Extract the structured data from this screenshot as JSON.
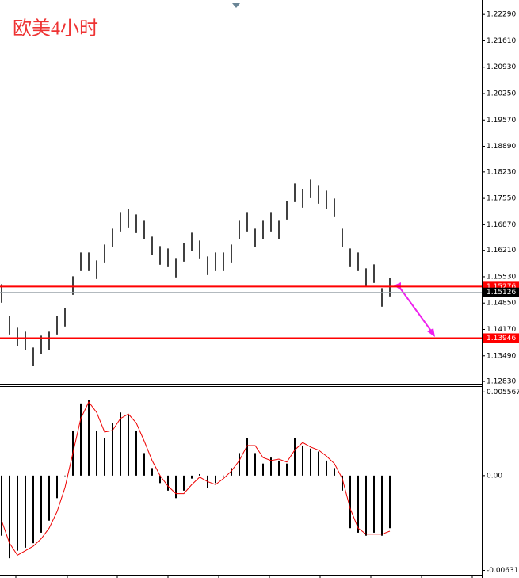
{
  "chart_data": [
    {
      "type": "range_bar",
      "title": "欧美4小时",
      "title_color": "#ee3333",
      "color": "#000000",
      "high": [
        1.15338,
        1.1452,
        1.14214,
        1.14112,
        1.13703,
        1.1401,
        1.14112,
        1.1452,
        1.14725,
        1.15542,
        1.16155,
        1.16155,
        1.15951,
        1.16359,
        1.16768,
        1.17177,
        1.17279,
        1.17136,
        1.16972,
        1.16564,
        1.16319,
        1.16257,
        1.15992,
        1.164,
        1.16666,
        1.16462,
        1.16053,
        1.16155,
        1.16155,
        1.16359,
        1.16972,
        1.17177,
        1.16768,
        1.16972,
        1.17177,
        1.16972,
        1.17483,
        1.17933,
        1.1779,
        1.18035,
        1.17892,
        1.17749,
        1.17545,
        1.16768,
        1.16257,
        1.16155,
        1.15747,
        1.15849,
        1.15236,
        1.15501
      ],
      "low": [
        1.14858,
        1.1404,
        1.13734,
        1.13632,
        1.13223,
        1.1353,
        1.13632,
        1.1404,
        1.14245,
        1.15062,
        1.15675,
        1.15675,
        1.15471,
        1.15879,
        1.16288,
        1.16697,
        1.16799,
        1.16656,
        1.16492,
        1.16084,
        1.15839,
        1.15777,
        1.15512,
        1.1592,
        1.16186,
        1.15982,
        1.15573,
        1.15675,
        1.15675,
        1.15879,
        1.16492,
        1.16697,
        1.16288,
        1.16492,
        1.16697,
        1.16492,
        1.17003,
        1.17453,
        1.1731,
        1.17555,
        1.17412,
        1.17269,
        1.17065,
        1.16288,
        1.15777,
        1.15675,
        1.15267,
        1.15369,
        1.14756,
        1.15021
      ],
      "ylim": [
        1.1277,
        1.2258
      ],
      "yticks": [
        {
          "value": 1.2229,
          "label": "1.22290"
        },
        {
          "value": 1.2161,
          "label": "1.21610"
        },
        {
          "value": 1.2093,
          "label": "1.20930"
        },
        {
          "value": 1.2025,
          "label": "1.20250"
        },
        {
          "value": 1.1957,
          "label": "1.19570"
        },
        {
          "value": 1.1889,
          "label": "1.18890"
        },
        {
          "value": 1.1823,
          "label": "1.18230"
        },
        {
          "value": 1.1755,
          "label": "1.17550"
        },
        {
          "value": 1.1687,
          "label": "1.16870"
        },
        {
          "value": 1.1621,
          "label": "1.16210"
        },
        {
          "value": 1.1553,
          "label": "1.15530"
        },
        {
          "value": 1.1485,
          "label": "1.14850"
        },
        {
          "value": 1.1417,
          "label": "1.14170"
        },
        {
          "value": 1.1349,
          "label": "1.13490"
        },
        {
          "value": 1.1283,
          "label": "1.12830"
        }
      ],
      "levels": [
        {
          "value": 1.15276,
          "color": "#ff0000"
        },
        {
          "value": 1.15126,
          "color": "#000000"
        },
        {
          "value": 1.13946,
          "color": "#ff0000"
        }
      ]
    },
    {
      "type": "macd",
      "series": [
        {
          "color": "#000000",
          "values": [
            -0.004,
            -0.0055,
            -0.005,
            -0.0048,
            -0.0045,
            -0.0038,
            -0.003,
            -0.0015,
            0,
            0.003,
            0.0048,
            0.005,
            0.003,
            0.0025,
            0.0035,
            0.0042,
            0.004,
            0.003,
            0.0015,
            0.0005,
            -0.0005,
            -0.001,
            -0.0015,
            -0.001,
            -0.0002,
            0.0001,
            -0.0008,
            -0.0005,
            0,
            0.0005,
            0.0015,
            0.0025,
            0.0015,
            0.0008,
            0.0012,
            0.001,
            0.0008,
            0.0025,
            0.002,
            0.0018,
            0.0016,
            0.001,
            0.0005,
            -0.001,
            -0.0035,
            -0.0038,
            -0.004,
            -0.0038,
            -0.004,
            -0.0035
          ]
        },
        {
          "color": "#ee0000",
          "values": [
            -0.003,
            -0.0045,
            -0.0053,
            -0.005,
            -0.0047,
            -0.0042,
            -0.0035,
            -0.0024,
            -0.0008,
            0.0015,
            0.0038,
            0.0049,
            0.0042,
            0.0029,
            0.003,
            0.0038,
            0.0041,
            0.0035,
            0.0023,
            0.001,
            0,
            -0.0007,
            -0.0012,
            -0.0012,
            -0.0006,
            -0.0001,
            -0.0004,
            -0.0006,
            -0.0002,
            0.0003,
            0.001,
            0.002,
            0.002,
            0.0012,
            0.001,
            0.0011,
            0.0009,
            0.0017,
            0.0022,
            0.0019,
            0.0017,
            0.0013,
            0.0008,
            -0.0002,
            -0.0022,
            -0.0035,
            -0.0039,
            -0.0039,
            -0.0039,
            -0.0037
          ]
        }
      ],
      "ylim": [
        -0.0066,
        0.0059
      ],
      "yticks": [
        0.005567,
        {
          "value": 0,
          "label": "0.00"
        },
        -0.006311
      ]
    }
  ]
}
